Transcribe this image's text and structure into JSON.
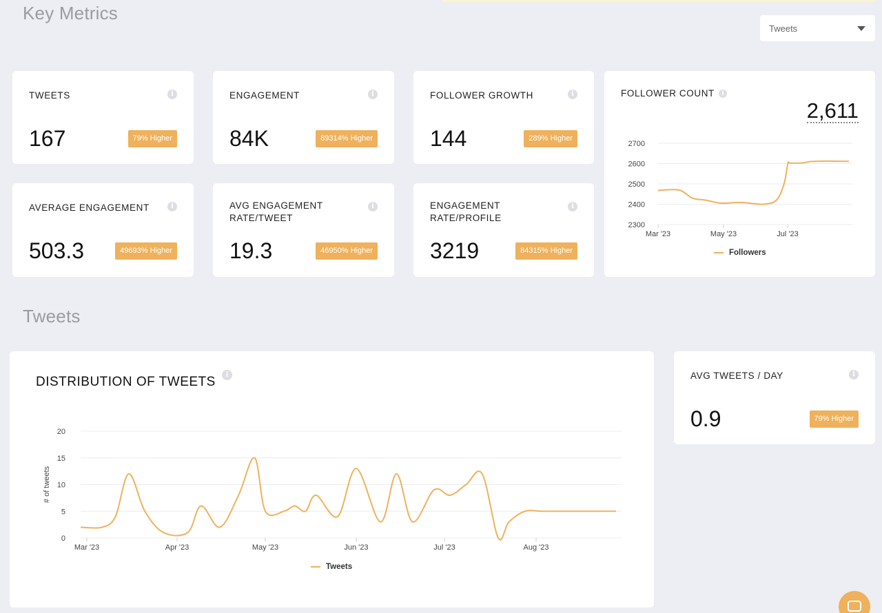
{
  "sections": {
    "key_metrics": "Key Metrics",
    "tweets": "Tweets"
  },
  "dropdown": {
    "selected": "Tweets",
    "icon": "caret-down-icon"
  },
  "metrics": [
    {
      "label": "TWEETS",
      "value": "167",
      "badge": "79% Higher"
    },
    {
      "label": "ENGAGEMENT",
      "value": "84K",
      "badge": "89314% Higher"
    },
    {
      "label": "FOLLOWER GROWTH",
      "value": "144",
      "badge": "289% Higher"
    },
    {
      "label": "AVERAGE ENGAGEMENT",
      "value": "503.3",
      "badge": "49693% Higher"
    },
    {
      "label": "AVG ENGAGEMENT RATE/TWEET",
      "value": "19.3",
      "badge": "46950% Higher"
    },
    {
      "label": "ENGAGEMENT RATE/PROFILE",
      "value": "3219",
      "badge": "84315% Higher"
    }
  ],
  "info_icon": "i",
  "follower_count": {
    "title": "FOLLOWER COUNT",
    "value": "2,611",
    "legend": "Followers"
  },
  "avg_tweets": {
    "label": "AVG TWEETS / DAY",
    "value": "0.9",
    "badge": "79% Higher"
  },
  "distribution": {
    "title": "DISTRIBUTION OF TWEETS",
    "legend": "Tweets"
  },
  "colors": {
    "accent": "#efb15b",
    "background": "#edeef3",
    "card": "#ffffff"
  },
  "chart_data": [
    {
      "type": "line",
      "title": "FOLLOWER COUNT",
      "x_ticks": [
        "Mar '23",
        "May '23",
        "Jul '23"
      ],
      "y_ticks": [
        2300,
        2400,
        2500,
        2600,
        2700
      ],
      "ylim": [
        2300,
        2700
      ],
      "grid": true,
      "legend_position": "bottom",
      "series": [
        {
          "name": "Followers",
          "x": [
            0,
            0.11,
            0.18,
            0.25,
            0.33,
            0.4,
            0.45,
            0.55,
            0.62,
            0.66,
            0.68,
            0.69,
            0.72,
            0.76,
            0.8,
            0.86,
            0.92,
            1.0
          ],
          "y": [
            2468,
            2470,
            2430,
            2420,
            2405,
            2408,
            2408,
            2400,
            2420,
            2500,
            2600,
            2602,
            2602,
            2604,
            2610,
            2612,
            2612,
            2611
          ]
        }
      ]
    },
    {
      "type": "line",
      "title": "DISTRIBUTION OF TWEETS",
      "x_ticks": [
        "Mar '23",
        "Apr '23",
        "May '23",
        "Jun '23",
        "Jul '23",
        "Aug '23"
      ],
      "y_ticks": [
        0,
        5,
        10,
        15,
        20
      ],
      "ylabel": "# of tweets",
      "ylim": [
        0,
        20
      ],
      "grid": true,
      "legend_position": "bottom",
      "series": [
        {
          "name": "Tweets",
          "x": [
            0,
            0.04,
            0.065,
            0.09,
            0.12,
            0.155,
            0.2,
            0.225,
            0.26,
            0.295,
            0.325,
            0.345,
            0.38,
            0.4,
            0.42,
            0.44,
            0.48,
            0.515,
            0.56,
            0.59,
            0.62,
            0.66,
            0.69,
            0.72,
            0.75,
            0.78,
            0.8,
            0.83,
            0.86,
            0.89,
            0.92,
            0.96,
            0.985,
            1.0
          ],
          "y": [
            2,
            2,
            4,
            12,
            5,
            1,
            1,
            6,
            2,
            8,
            15,
            5,
            5,
            6,
            5,
            8,
            4,
            13,
            3,
            12,
            3,
            9,
            8,
            10,
            12,
            0,
            3,
            5,
            5,
            5,
            5,
            5,
            5,
            5
          ]
        }
      ]
    }
  ]
}
